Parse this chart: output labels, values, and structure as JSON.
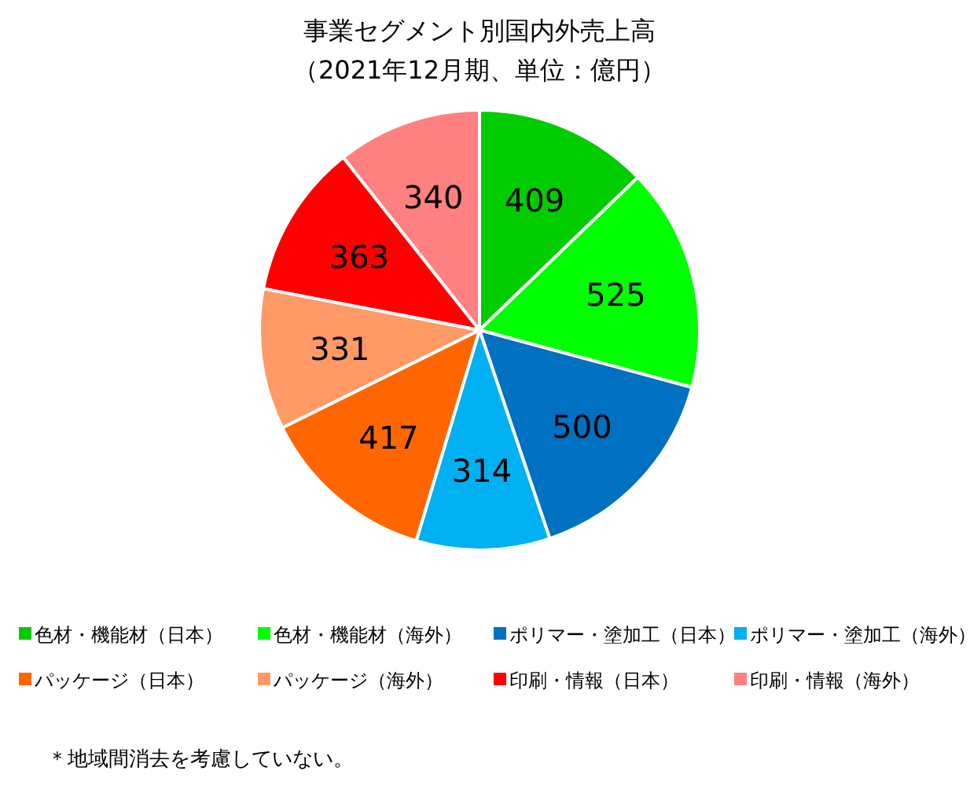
{
  "chart_data": {
    "type": "pie",
    "title": "事業セグメント別国内外売上高",
    "subtitle": "（2021年12月期、単位：億円）",
    "categories": [
      "色材・機能材（日本）",
      "色材・機能材（海外）",
      "ポリマー・塗加工（日本）",
      "ポリマー・塗加工（海外）",
      "パッケージ（日本）",
      "パッケージ（海外）",
      "印刷・情報（日本）",
      "印刷・情報（海外）"
    ],
    "values": [
      409,
      525,
      500,
      314,
      417,
      331,
      363,
      340
    ],
    "colors": [
      "#00cc00",
      "#00ff00",
      "#0070c0",
      "#00b0f0",
      "#ff6600",
      "#ff9966",
      "#ff0000",
      "#ff8080"
    ],
    "data_labels": true,
    "legend": "bottom",
    "annotations": [
      "＊地域間消去を考慮していない。"
    ]
  }
}
